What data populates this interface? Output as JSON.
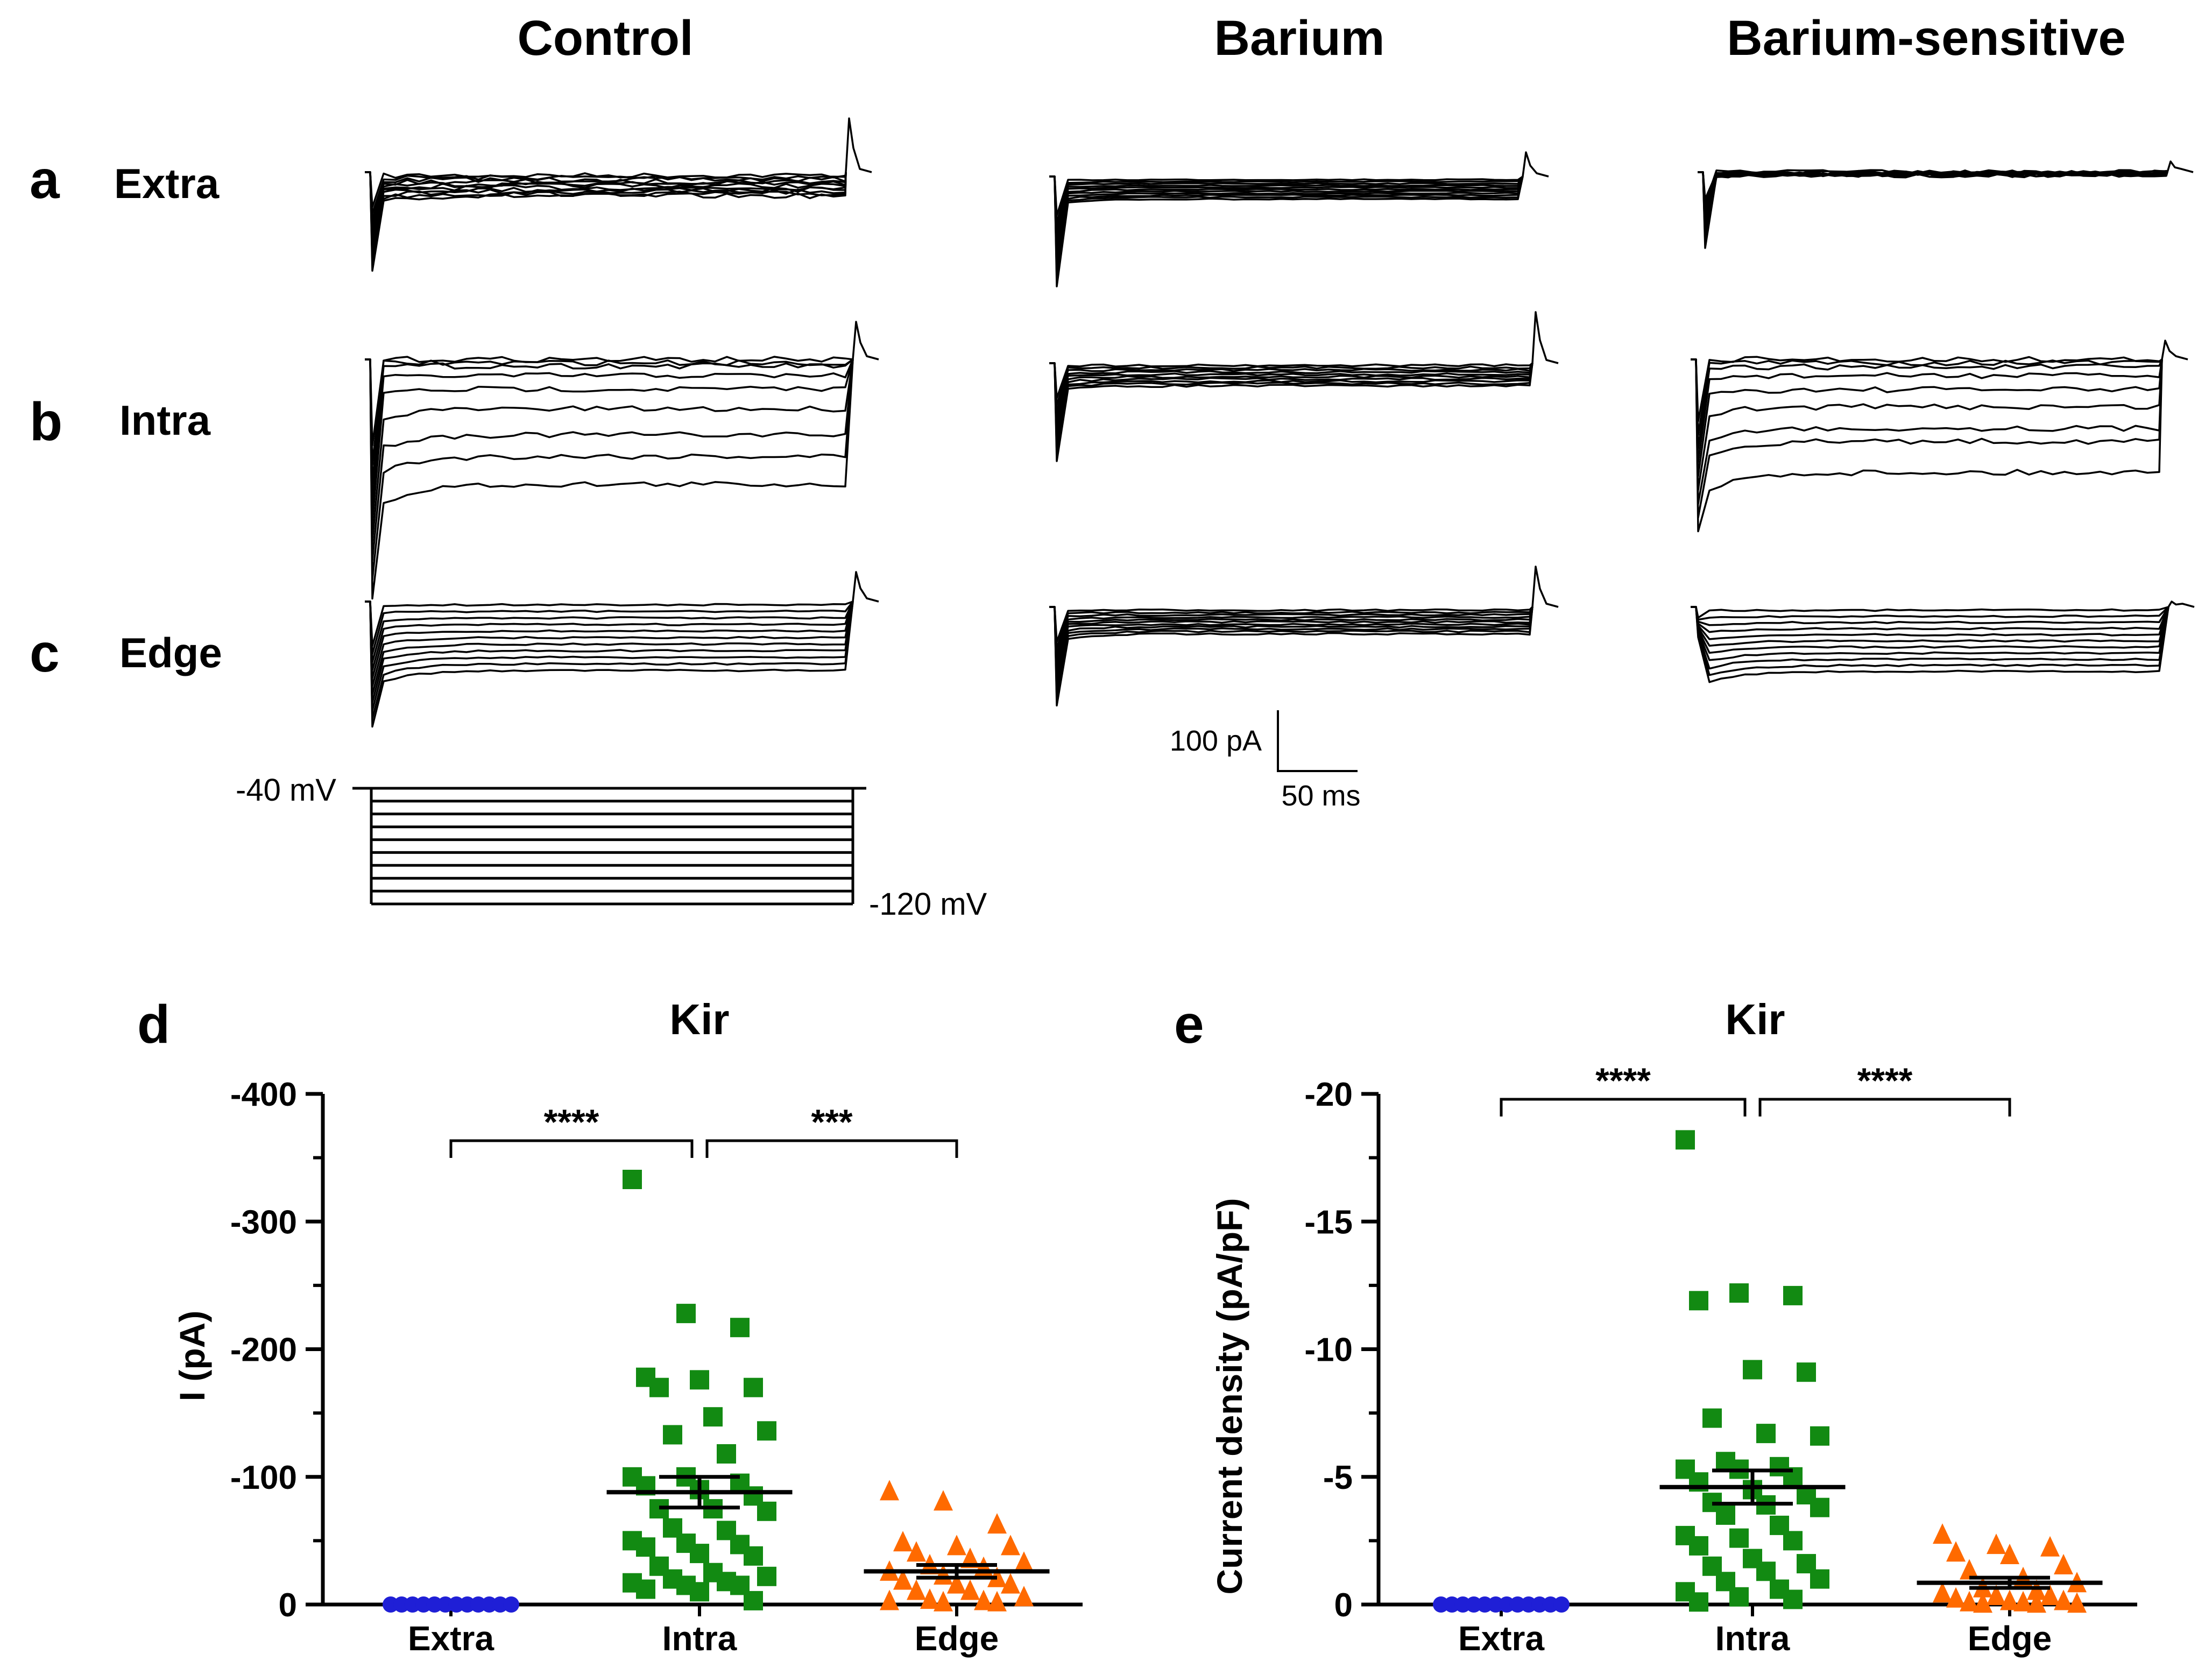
{
  "columns": [
    "Control",
    "Barium",
    "Barium-sensitive"
  ],
  "rows": [
    {
      "letter": "a",
      "name": "Extra"
    },
    {
      "letter": "b",
      "name": "Intra"
    },
    {
      "letter": "c",
      "name": "Edge"
    }
  ],
  "scalebar": {
    "current": "100 pA",
    "time": "50 ms"
  },
  "protocol": {
    "top": "-40 mV",
    "bottom": "-120 mV"
  },
  "colors": {
    "Extra": "#1f1fd6",
    "Intra": "#128a12",
    "Edge": "#ff6a00",
    "line": "#000000"
  },
  "chart_data": [
    {
      "panel": "d",
      "type": "scatter",
      "title": "Kir",
      "xlabel": "",
      "ylabel": "I (pA)",
      "categories": [
        "Extra",
        "Intra",
        "Edge"
      ],
      "ylim": [
        0,
        -400
      ],
      "yticks": [
        "-400",
        "-300",
        "-200",
        "-100",
        "0"
      ],
      "markers": {
        "Extra": "circle",
        "Intra": "square",
        "Edge": "triangle"
      },
      "series": [
        {
          "name": "Extra",
          "values": [
            0,
            0,
            0,
            0,
            0,
            0,
            0,
            0,
            0,
            0,
            0,
            0
          ]
        },
        {
          "name": "Intra",
          "values": [
            -333,
            -228,
            -217,
            -178,
            -176,
            -170,
            -170,
            -147,
            -136,
            -133,
            -118,
            -100,
            -100,
            -95,
            -93,
            -90,
            -85,
            -75,
            -75,
            -73,
            -60,
            -58,
            -50,
            -48,
            -47,
            -45,
            -40,
            -38,
            -30,
            -25,
            -22,
            -20,
            -18,
            -17,
            -15,
            -15,
            -12,
            -10,
            -3
          ]
        },
        {
          "name": "Edge",
          "values": [
            -88,
            -80,
            -62,
            -48,
            -45,
            -45,
            -40,
            -35,
            -32,
            -30,
            -28,
            -25,
            -22,
            -20,
            -18,
            -15,
            -15,
            -10,
            -10,
            -5,
            -3,
            -2,
            -2,
            -1,
            -1
          ]
        }
      ],
      "summary": [
        {
          "name": "Extra",
          "mean": 0,
          "sem": 0
        },
        {
          "name": "Intra",
          "mean": -88,
          "sem": 12
        },
        {
          "name": "Edge",
          "mean": -26,
          "sem": 5
        }
      ],
      "significance": [
        {
          "from": "Intra",
          "to": "Extra",
          "label": "****"
        },
        {
          "from": "Intra",
          "to": "Edge",
          "label": "***"
        }
      ]
    },
    {
      "panel": "e",
      "type": "scatter",
      "title": "Kir",
      "xlabel": "",
      "ylabel": "Current density (pA/pF)",
      "categories": [
        "Extra",
        "Intra",
        "Edge"
      ],
      "ylim": [
        0,
        -20
      ],
      "yticks": [
        "-20",
        "-15",
        "-10",
        "-5",
        "0"
      ],
      "markers": {
        "Extra": "circle",
        "Intra": "square",
        "Edge": "triangle"
      },
      "series": [
        {
          "name": "Extra",
          "values": [
            0,
            0,
            0,
            0,
            0,
            0,
            0,
            0,
            0,
            0,
            0,
            0
          ]
        },
        {
          "name": "Intra",
          "values": [
            -18.2,
            -12.2,
            -12.1,
            -11.9,
            -9.2,
            -9.1,
            -7.3,
            -6.7,
            -6.6,
            -5.6,
            -5.4,
            -5.3,
            -5.3,
            -5.0,
            -4.8,
            -4.5,
            -4.3,
            -4.0,
            -3.9,
            -3.8,
            -3.5,
            -3.1,
            -2.7,
            -2.6,
            -2.5,
            -2.3,
            -1.8,
            -1.6,
            -1.5,
            -1.3,
            -1.0,
            -0.9,
            -0.6,
            -0.5,
            -0.3,
            -0.2,
            -0.1
          ]
        },
        {
          "name": "Edge",
          "values": [
            -2.7,
            -2.3,
            -2.2,
            -2.0,
            -1.9,
            -1.5,
            -1.3,
            -1.0,
            -0.8,
            -0.6,
            -0.5,
            -0.4,
            -0.3,
            -0.3,
            -0.2,
            -0.1,
            -0.1,
            -0.05,
            -0.05,
            0,
            0,
            0
          ]
        }
      ],
      "summary": [
        {
          "name": "Extra",
          "mean": 0,
          "sem": 0
        },
        {
          "name": "Intra",
          "mean": -4.6,
          "sem": 0.65
        },
        {
          "name": "Edge",
          "mean": -0.85,
          "sem": 0.2
        }
      ],
      "significance": [
        {
          "from": "Intra",
          "to": "Extra",
          "label": "****"
        },
        {
          "from": "Intra",
          "to": "Edge",
          "label": "****"
        }
      ]
    }
  ]
}
